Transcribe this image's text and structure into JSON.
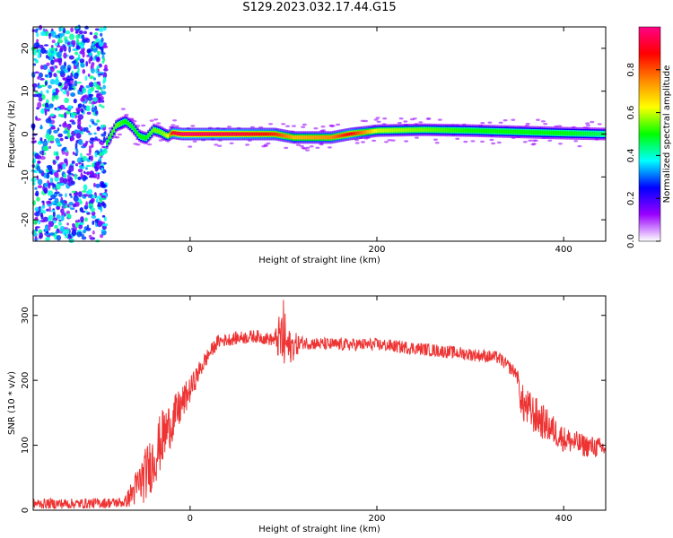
{
  "title": "S129.2023.032.17.44.G15",
  "colors": {
    "snr_line": "#ee3333",
    "colormap": [
      "#ffffff",
      "#9900ff",
      "#0000ff",
      "#00ffff",
      "#00ff00",
      "#ffff00",
      "#ff8800",
      "#ff0000",
      "#ff0088"
    ]
  },
  "chart_data": [
    {
      "type": "heatmap",
      "xlabel": "Height of straight line (km)",
      "ylabel": "Frequency (Hz)",
      "xlim": [
        -168,
        445
      ],
      "ylim": [
        -25,
        25
      ],
      "x_ticks": [
        0,
        200,
        400
      ],
      "y_ticks": [
        -20,
        -10,
        0,
        10,
        20
      ],
      "colorbar": {
        "label": "Normalized spectral amplitude",
        "range": [
          0,
          1
        ],
        "ticks": [
          0.0,
          0.2,
          0.4,
          0.6,
          0.8
        ]
      },
      "noise_region_x": [
        -168,
        -90
      ],
      "ridge": {
        "x": [
          -90,
          -80,
          -70,
          -62,
          -55,
          -48,
          -40,
          -33,
          -25,
          -20,
          -10,
          0,
          50,
          90,
          110,
          150,
          170,
          200,
          250,
          300,
          350,
          400,
          445
        ],
        "freq": [
          -2,
          2,
          3,
          1.5,
          -0.5,
          -1,
          1,
          0.5,
          -0.5,
          0.3,
          0,
          0,
          0,
          0,
          -0.8,
          -0.8,
          0,
          0.8,
          1.0,
          0.8,
          0.5,
          0.2,
          0
        ],
        "peak_amplitude": [
          0.5,
          0.55,
          0.5,
          0.5,
          0.5,
          0.5,
          0.55,
          0.55,
          0.6,
          0.9,
          1.0,
          1.0,
          0.95,
          0.85,
          0.7,
          0.75,
          0.9,
          0.6,
          0.55,
          0.5,
          0.5,
          0.5,
          0.45
        ]
      }
    },
    {
      "type": "line",
      "xlabel": "Height of straight line (km)",
      "ylabel": "SNR (10 * v/v)",
      "xlim": [
        -168,
        445
      ],
      "ylim": [
        0,
        330
      ],
      "x_ticks": [
        0,
        200,
        400
      ],
      "y_ticks": [
        0,
        100,
        200,
        300
      ],
      "series": [
        {
          "x": [
            -168,
            -120,
            -70,
            -60,
            -50,
            -40,
            -30,
            -20,
            -10,
            0,
            10,
            20,
            30,
            50,
            70,
            90,
            100,
            105,
            120,
            150,
            200,
            250,
            300,
            330,
            350,
            355,
            370,
            400,
            420,
            445
          ],
          "values": [
            10,
            10,
            12,
            30,
            50,
            75,
            110,
            135,
            160,
            185,
            215,
            240,
            260,
            265,
            268,
            262,
            265,
            250,
            258,
            255,
            255,
            248,
            240,
            235,
            210,
            165,
            145,
            110,
            100,
            95
          ],
          "noise_amplitude": [
            8,
            8,
            8,
            25,
            40,
            45,
            45,
            35,
            30,
            20,
            15,
            12,
            10,
            10,
            10,
            10,
            60,
            30,
            10,
            10,
            10,
            10,
            10,
            10,
            10,
            30,
            30,
            20,
            18,
            15
          ]
        }
      ]
    }
  ]
}
